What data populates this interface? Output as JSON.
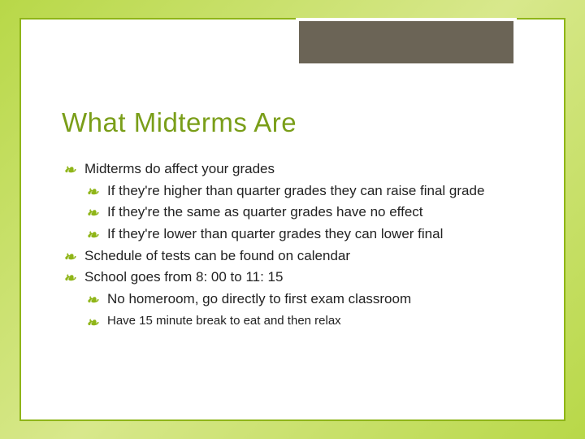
{
  "slide": {
    "title": "What Midterms Are",
    "title_color": "#7a9e19",
    "accent_color": "#8fb518",
    "header_block_color": "#6b6456",
    "background_gradient": [
      "#b8d848",
      "#d8e88c",
      "#b8d848"
    ],
    "bullet_glyph": "❧",
    "bullets": [
      {
        "level": 1,
        "text": "Midterms do affect your grades"
      },
      {
        "level": 2,
        "text": "If they're higher than quarter grades they can raise final grade"
      },
      {
        "level": 2,
        "text": "If they're the same as quarter grades have no effect"
      },
      {
        "level": 2,
        "text": "If they're lower than quarter grades they can lower final"
      },
      {
        "level": 1,
        "text": "Schedule of tests can be found on calendar"
      },
      {
        "level": 1,
        "text": "School goes from 8: 00 to 11: 15"
      },
      {
        "level": 2,
        "text": "No homeroom, go directly to first exam classroom"
      },
      {
        "level": 2,
        "text": "Have 15 minute break to eat and then relax",
        "small": true
      }
    ],
    "body_fontsize": 17,
    "title_fontsize": 33
  }
}
